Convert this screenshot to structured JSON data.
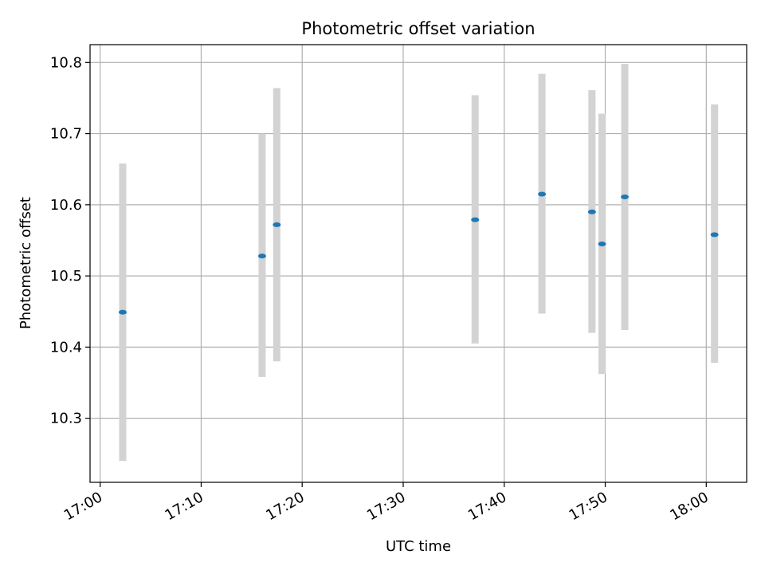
{
  "chart_data": {
    "type": "scatter",
    "title": "Photometric offset variation",
    "xlabel": "UTC time",
    "ylabel": "Photometric offset",
    "x_tick_labels": [
      "17:00",
      "17:10",
      "17:20",
      "17:30",
      "17:40",
      "17:50",
      "18:00"
    ],
    "y_tick_labels": [
      "10.3",
      "10.4",
      "10.5",
      "10.6",
      "10.7",
      "10.8"
    ],
    "xlim": [
      "16:59",
      "18:04"
    ],
    "ylim": [
      10.21,
      10.825
    ],
    "grid": true,
    "legend": "none",
    "colors": {
      "point": "#1f77b4",
      "error_bar": "#d3d3d3",
      "grid": "#b0b0b0"
    },
    "points": [
      {
        "time": "17:02:14",
        "y": 10.449,
        "y_low": 10.24,
        "y_high": 10.658
      },
      {
        "time": "17:16:02",
        "y": 10.528,
        "y_low": 10.358,
        "y_high": 10.7
      },
      {
        "time": "17:17:29",
        "y": 10.572,
        "y_low": 10.38,
        "y_high": 10.764
      },
      {
        "time": "17:37:07",
        "y": 10.579,
        "y_low": 10.405,
        "y_high": 10.754
      },
      {
        "time": "17:43:44",
        "y": 10.615,
        "y_low": 10.447,
        "y_high": 10.784
      },
      {
        "time": "17:48:41",
        "y": 10.59,
        "y_low": 10.42,
        "y_high": 10.761
      },
      {
        "time": "17:49:41",
        "y": 10.545,
        "y_low": 10.362,
        "y_high": 10.728
      },
      {
        "time": "17:51:56",
        "y": 10.611,
        "y_low": 10.424,
        "y_high": 10.798
      },
      {
        "time": "18:00:49",
        "y": 10.558,
        "y_low": 10.378,
        "y_high": 10.741
      }
    ]
  }
}
